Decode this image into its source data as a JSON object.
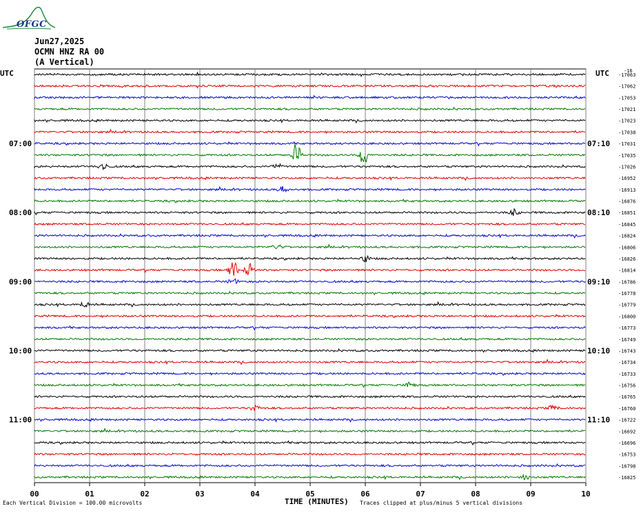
{
  "header": {
    "date": "Jun27,2025",
    "station": "OCMN HNZ RA 00",
    "component": "(A Vertical)"
  },
  "logo_text": "OFGC",
  "chart_data": {
    "type": "line",
    "subtype": "helicorder",
    "left_axis_label": "UTC",
    "right_axis_label": "UTC",
    "right_top_label": "-16",
    "left_hour_labels": [
      "07:00",
      "08:00",
      "09:00",
      "10:00",
      "11:00"
    ],
    "right_hour_labels": [
      "07:10",
      "08:10",
      "09:10",
      "10:10",
      "11:10"
    ],
    "hour_label_rows": [
      6,
      12,
      18,
      24,
      30
    ],
    "x_ticks": [
      "00",
      "01",
      "02",
      "03",
      "04",
      "05",
      "06",
      "07",
      "08",
      "09",
      "10"
    ],
    "x_range": [
      0,
      10
    ],
    "xlabel": "TIME (MINUTES)",
    "trace_colors": [
      "#000000",
      "#e00000",
      "#0000e0",
      "#007a00"
    ],
    "row_offsets": [
      "-17063",
      "-17062",
      "-17053",
      "-17021",
      "-17023",
      "-17038",
      "-17031",
      "-17035",
      "-17026",
      "-16952",
      "-16913",
      "-16876",
      "-16851",
      "-16845",
      "-16824",
      "-16806",
      "-16826",
      "-16814",
      "-16786",
      "-16778",
      "-16779",
      "-16800",
      "-16773",
      "-16749",
      "-16743",
      "-16734",
      "-16733",
      "-16756",
      "-16765",
      "-16760",
      "-16722",
      "-16692",
      "-16696",
      "-16753",
      "-16798",
      "-16825"
    ],
    "events": [
      {
        "row": 7,
        "minute": 4.75,
        "amplitude": 6
      },
      {
        "row": 7,
        "minute": 5.97,
        "amplitude": 5
      },
      {
        "row": 8,
        "minute": 1.25,
        "amplitude": 2
      },
      {
        "row": 8,
        "minute": 4.4,
        "amplitude": 1.5
      },
      {
        "row": 10,
        "minute": 4.5,
        "amplitude": 1.5
      },
      {
        "row": 12,
        "minute": 8.7,
        "amplitude": 1.5
      },
      {
        "row": 15,
        "minute": 4.4,
        "amplitude": 1.5
      },
      {
        "row": 16,
        "minute": 6.0,
        "amplitude": 1.5
      },
      {
        "row": 17,
        "minute": 3.6,
        "amplitude": 5
      },
      {
        "row": 17,
        "minute": 3.9,
        "amplitude": 4
      },
      {
        "row": 18,
        "minute": 3.6,
        "amplitude": 1.5
      },
      {
        "row": 20,
        "minute": 0.9,
        "amplitude": 1.5
      },
      {
        "row": 27,
        "minute": 6.8,
        "amplitude": 1.5
      },
      {
        "row": 29,
        "minute": 9.4,
        "amplitude": 1.5
      },
      {
        "row": 29,
        "minute": 4.0,
        "amplitude": 1.5
      },
      {
        "row": 35,
        "minute": 8.9,
        "amplitude": 1.2
      }
    ],
    "footer_left": "Each Vertical Division =  100.00 microvolts",
    "footer_right": "Traces clipped at plus/minus 5 vertical divisions"
  }
}
